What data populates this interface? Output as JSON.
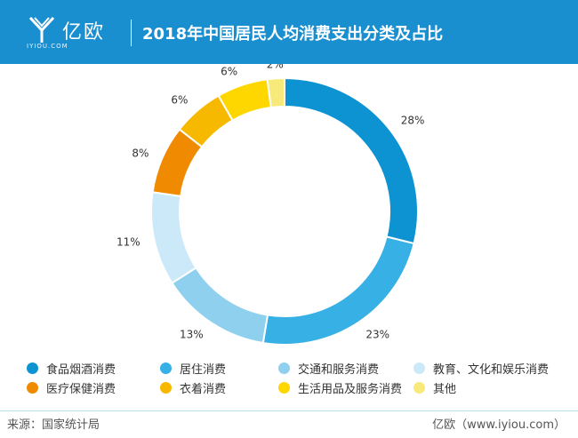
{
  "header": {
    "logo_text": "亿欧",
    "logo_sub": "IYIOU.COM",
    "title": "2018年中国居民人均消费支出分类及占比"
  },
  "chart_data": {
    "type": "pie",
    "title": "2018年中国居民人均消费支出分类及占比",
    "donut": true,
    "legend_position": "bottom",
    "categories": [
      "食品烟酒消费",
      "居住消费",
      "交通和服务消费",
      "教育、文化和娱乐消费",
      "医疗保健消费",
      "衣着消费",
      "生活用品及服务消费",
      "其他"
    ],
    "values": [
      28,
      23,
      13,
      11,
      8,
      6,
      6,
      2
    ],
    "labels": [
      "28%",
      "23%",
      "13%",
      "11%",
      "8%",
      "6%",
      "6%",
      "2%"
    ],
    "colors": [
      "#0d93d2",
      "#36b0e5",
      "#8fd0ef",
      "#cbe9f8",
      "#f08a00",
      "#f7b800",
      "#ffd700",
      "#f7ea7a"
    ]
  },
  "footer": {
    "source": "来源：国家统计局",
    "credit": "亿欧（www.iyiou.com）"
  }
}
